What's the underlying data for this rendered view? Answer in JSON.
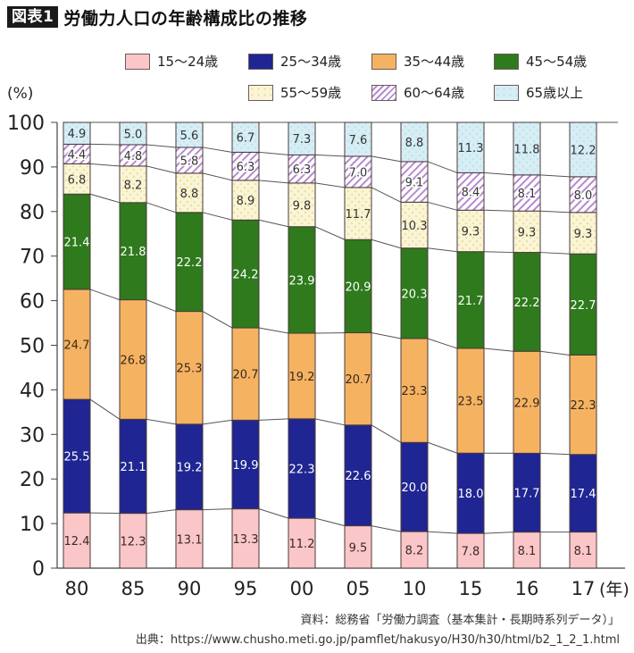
{
  "header": {
    "badge": "図表1",
    "title": "労働力人口の年齢構成比の推移"
  },
  "chart_data": {
    "type": "bar",
    "stacked": true,
    "title": "労働力人口の年齢構成比の推移",
    "xlabel": "(年)",
    "ylabel": "(%)",
    "ylim": [
      0,
      100
    ],
    "yticks": [
      0,
      10,
      20,
      30,
      40,
      50,
      60,
      70,
      80,
      90,
      100
    ],
    "categories": [
      "80",
      "85",
      "90",
      "95",
      "00",
      "05",
      "10",
      "15",
      "16",
      "17"
    ],
    "x_unit_label": "(年)",
    "legend_position": "top",
    "series": [
      {
        "name": "15〜24歳",
        "color": "#fbc6c8",
        "pattern": "solid",
        "label_color": "#3a2a2a",
        "values": [
          12.4,
          12.3,
          13.1,
          13.3,
          11.2,
          9.5,
          8.2,
          7.8,
          8.1,
          8.1
        ],
        "labels": [
          "12.4",
          "12.3",
          "13.1",
          "13.3",
          "11.2",
          "9.5",
          "8.2",
          "7.8",
          "8.1",
          "8.1"
        ]
      },
      {
        "name": "25〜34歳",
        "color": "#1f2592",
        "pattern": "solid",
        "label_color": "#ffffff",
        "values": [
          25.5,
          21.1,
          19.2,
          19.9,
          22.3,
          22.6,
          20.0,
          18.0,
          17.7,
          17.4
        ],
        "labels": [
          "25.5",
          "21.1",
          "19.2",
          "19.9",
          "22.3",
          "22.6",
          "20.0",
          "18.0",
          "17.7",
          "17.4"
        ]
      },
      {
        "name": "35〜44歳",
        "color": "#f5b362",
        "pattern": "solid",
        "label_color": "#3a2a1a",
        "values": [
          24.7,
          26.8,
          25.3,
          20.7,
          19.2,
          20.7,
          23.3,
          23.5,
          22.9,
          22.3
        ],
        "labels": [
          "24.7",
          "26.8",
          "25.3",
          "20.7",
          "19.2",
          "20.7",
          "23.3",
          "23.5",
          "22.9",
          "22.3"
        ]
      },
      {
        "name": "45〜54歳",
        "color": "#2e7a1c",
        "pattern": "solid",
        "label_color": "#ffffff",
        "values": [
          21.4,
          21.8,
          22.2,
          24.2,
          23.9,
          20.9,
          20.3,
          21.7,
          22.2,
          22.7
        ],
        "labels": [
          "21.4",
          "21.8",
          "22.2",
          "24.2",
          "23.9",
          "20.9",
          "20.3",
          "21.7",
          "22.2",
          "22.7"
        ]
      },
      {
        "name": "55〜59歳",
        "color": "#fbf5d8",
        "pattern": "dots",
        "pattern_color": "#efe2a0",
        "label_color": "#333333",
        "values": [
          6.8,
          8.2,
          8.8,
          8.9,
          9.8,
          11.7,
          10.3,
          9.3,
          9.3,
          9.3
        ],
        "labels": [
          "6.8",
          "8.2",
          "8.8",
          "8.9",
          "9.8",
          "11.7",
          "10.3",
          "9.3",
          "9.3",
          "9.3"
        ]
      },
      {
        "name": "60〜64歳",
        "color": "#ffffff",
        "pattern": "hatch",
        "pattern_color": "#b68ad0",
        "label_color": "#333333",
        "values": [
          4.4,
          4.8,
          5.8,
          6.3,
          6.3,
          7.0,
          9.1,
          8.4,
          8.1,
          8.0
        ],
        "labels": [
          "4.4",
          "4.8",
          "5.8",
          "6.3",
          "6.3",
          "7.0",
          "9.1",
          "8.4",
          "8.1",
          "8.0"
        ]
      },
      {
        "name": "65歳以上",
        "color": "#d7eef5",
        "pattern": "dots",
        "pattern_color": "#bfe1ec",
        "label_color": "#333333",
        "values": [
          4.9,
          5.0,
          5.6,
          6.7,
          7.3,
          7.6,
          8.8,
          11.3,
          11.8,
          12.2
        ],
        "labels": [
          "4.9",
          "5.0",
          "5.6",
          "6.7",
          "7.3",
          "7.6",
          "8.8",
          "11.3",
          "11.8",
          "12.2"
        ]
      }
    ],
    "connector_lines": true,
    "grid": false
  },
  "legend": {
    "items": [
      {
        "label": "15〜24歳"
      },
      {
        "label": "25〜34歳"
      },
      {
        "label": "35〜44歳"
      },
      {
        "label": "45〜54歳"
      },
      {
        "label": "55〜59歳"
      },
      {
        "label": "60〜64歳"
      },
      {
        "label": "65歳以上"
      }
    ]
  },
  "footer": {
    "source": "資料：総務省「労働力調査（基本集計・長期時系列データ）」",
    "citation": "出典：https://www.chusho.meti.go.jp/pamflet/hakusyo/H30/h30/html/b2_1_2_1.html"
  }
}
